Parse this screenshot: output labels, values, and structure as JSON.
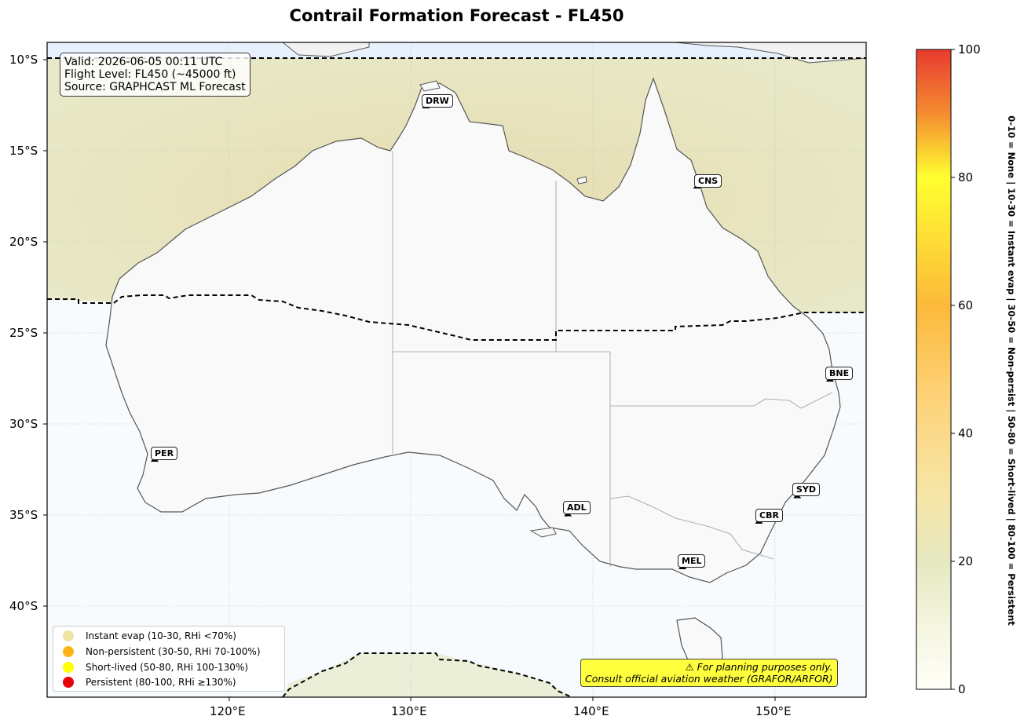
{
  "title": "Contrail Formation Forecast - FL450",
  "info": {
    "valid": "Valid: 2026-06-05 00:11 UTC",
    "flight_level": "Flight Level: FL450 (~45000 ft)",
    "source": "Source: GRAPHCAST ML Forecast"
  },
  "lat_ticks": [
    "10°S",
    "15°S",
    "20°S",
    "25°S",
    "30°S",
    "35°S",
    "40°S"
  ],
  "lon_ticks": [
    "120°E",
    "130°E",
    "140°E",
    "150°E"
  ],
  "cities": [
    {
      "code": "DRW",
      "lon": 130.8,
      "lat": -12.5
    },
    {
      "code": "CNS",
      "lon": 145.7,
      "lat": -16.9
    },
    {
      "code": "BNE",
      "lon": 153.0,
      "lat": -27.5
    },
    {
      "code": "PER",
      "lon": 115.9,
      "lat": -31.9
    },
    {
      "code": "ADL",
      "lon": 138.6,
      "lat": -34.9
    },
    {
      "code": "SYD",
      "lon": 151.2,
      "lat": -33.9
    },
    {
      "code": "CBR",
      "lon": 149.1,
      "lat": -35.3
    },
    {
      "code": "MEL",
      "lon": 144.9,
      "lat": -37.8
    }
  ],
  "legend": [
    {
      "label": "Instant evap (10-30, RHi <70%)",
      "color": "#f0e4a0"
    },
    {
      "label": "Non-persistent (30-50, RHi 70-100%)",
      "color": "#fdb515"
    },
    {
      "label": "Short-lived (50-80, RHi 100-130%)",
      "color": "#ffff00"
    },
    {
      "label": "Persistent (80-100, RHi ≥130%)",
      "color": "#e8000b"
    }
  ],
  "warning": {
    "line1": "⚠ For planning purposes only.",
    "line2": "Consult official aviation weather (GRAFOR/ARFOR)"
  },
  "colorbar": {
    "ticks": [
      "0",
      "20",
      "40",
      "60",
      "80",
      "100"
    ],
    "description": "0-10 = None  |  10-30 = Instant evap  |  30-50 = Non-persist  |  50-80 = Short-lived  |  80-100 = Persistent"
  }
}
